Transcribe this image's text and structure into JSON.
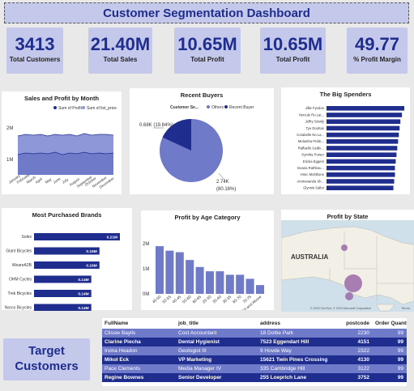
{
  "dashboard": {
    "title": "Customer Segmentation Dashboard"
  },
  "kpis": [
    {
      "value": "3413",
      "label": "Total Customers"
    },
    {
      "value": "21.40M",
      "label": "Total Sales"
    },
    {
      "value": "10.65M",
      "label": "Total Profit"
    },
    {
      "value": "10.65M",
      "label": "Total Profit"
    },
    {
      "value": "49.77",
      "label": "% Profit Margin"
    }
  ],
  "sales_profit": {
    "title": "Sales and Profit by Month",
    "legend": [
      "Sum of Profit",
      "Sum of list_price"
    ],
    "y_ticks": [
      "2M",
      "1M"
    ],
    "months": [
      "January",
      "February",
      "March",
      "April",
      "May",
      "June",
      "July",
      "August",
      "September",
      "October",
      "November",
      "December"
    ],
    "colors": {
      "profit": "#1f2d8e",
      "sales": "#8e98d8"
    }
  },
  "recent_buyers": {
    "title": "Recent Buyers",
    "legend_label": "Customer Se...",
    "legend": [
      "Others",
      "Recent Buyer"
    ],
    "label_small": "0.68K (19.84%)",
    "label_large_value": "2.74K",
    "label_large_pct": "(80.16%)",
    "colors": {
      "others": "#6f7ac8",
      "recent": "#1f2d8e"
    }
  },
  "big_spenders": {
    "title": "The Big Spenders",
    "names": [
      "Jillie Fyndon",
      "Hercule Ro Lat...",
      "Jeffry Slowly",
      "Tye Doohan",
      "Corabelle No La...",
      "Melantha Pickb...",
      "Raffaello Gedle...",
      "Kymiha Purser",
      "Ericka Eggers",
      "Deana Rathbou...",
      "Hnec McMhone",
      "Ammananda Sh...",
      "Glynnis Sallor"
    ],
    "values": [
      100,
      97,
      95,
      94,
      93,
      92,
      91,
      90,
      89,
      88,
      88,
      87,
      86
    ]
  },
  "brands": {
    "title": "Most Purchased Brands",
    "items": [
      {
        "name": "Solex",
        "label": "0.21M",
        "value": 0.21
      },
      {
        "name": "Giant Bicycles",
        "label": "0.16M",
        "value": 0.16
      },
      {
        "name": "WeareA2B",
        "label": "0.16M",
        "value": 0.16
      },
      {
        "name": "OHM Cycles",
        "label": "0.14M",
        "value": 0.14
      },
      {
        "name": "Trek Bicycles",
        "label": "0.14M",
        "value": 0.14
      },
      {
        "name": "Norco Bicycles",
        "label": "0.14M",
        "value": 0.14
      }
    ]
  },
  "profit_age": {
    "title": "Profit by Age Category",
    "categories": [
      "45-50",
      "50-55",
      "40-45",
      "55-60",
      "60-65",
      "25-30",
      "35-40",
      "30-35",
      "65-70",
      "70-75",
      "50 and Above"
    ],
    "values": [
      1.9,
      1.72,
      1.66,
      1.35,
      1.07,
      0.9,
      0.9,
      0.76,
      0.76,
      0.6,
      0.35
    ],
    "y_ticks": [
      "2M",
      "1M",
      "0M"
    ]
  },
  "profit_state": {
    "title": "Profit by State",
    "map_label": "AUSTRALIA",
    "credit": "© 2023 TomTom, © 2023 Microsoft Corporation",
    "terms": "Terms"
  },
  "target": {
    "line1": "Target",
    "line2": "Customers"
  },
  "table": {
    "headers": [
      "FullName",
      "job_title",
      "address",
      "postcode",
      "Order Quantity"
    ],
    "rows": [
      [
        "Clissie Baylis",
        "Cost Accountant",
        "18 Dottie Park",
        "2230",
        "99"
      ],
      [
        "Clarine Piecha",
        "Dental Hygienist",
        "7523 Eggendart Hill",
        "4151",
        "99"
      ],
      [
        "Irvina Headon",
        "Geologist III",
        "9 Hovde Way",
        "2322",
        "99"
      ],
      [
        "Mikol Eck",
        "VP Marketing",
        "15621 Twin Pines Crossing",
        "4130",
        "99"
      ],
      [
        "Pace Clements",
        "Media Manager IV",
        "335 Cambridge Hill",
        "3122",
        "99"
      ],
      [
        "Regine Bownes",
        "Senior Developer",
        "255 Loeprich Lane",
        "3752",
        "99"
      ]
    ]
  }
}
